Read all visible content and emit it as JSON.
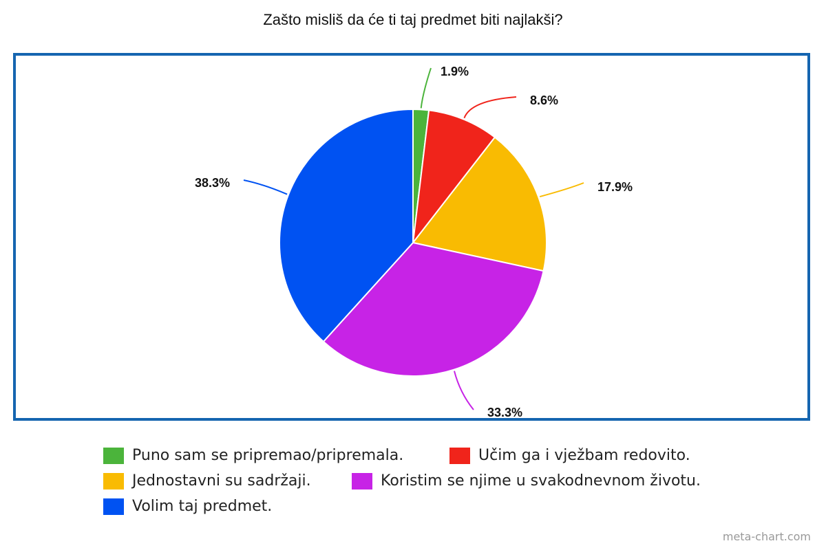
{
  "chart_data": {
    "type": "pie",
    "title": "Zašto misliš da će ti taj predmet biti najlakši?",
    "slices": [
      {
        "name": "Puno sam se pripremao/pripremala.",
        "value": 1.9,
        "label": "1.9%",
        "color": "#4bb43b"
      },
      {
        "name": "Učim ga i vježbam redovito.",
        "value": 8.6,
        "label": "8.6%",
        "color": "#f0241b"
      },
      {
        "name": "Jednostavni su sadržaji.",
        "value": 17.9,
        "label": "17.9%",
        "color": "#f9bb02"
      },
      {
        "name": "Koristim se njime u svakodnevnom životu.",
        "value": 33.3,
        "label": "33.3%",
        "color": "#c723e6"
      },
      {
        "name": "Volim taj predmet.",
        "value": 38.3,
        "label": "38.3%",
        "color": "#0052f2"
      }
    ],
    "legend_position": "bottom",
    "frame_color": "#1565b0"
  },
  "watermark": "meta-chart.com"
}
